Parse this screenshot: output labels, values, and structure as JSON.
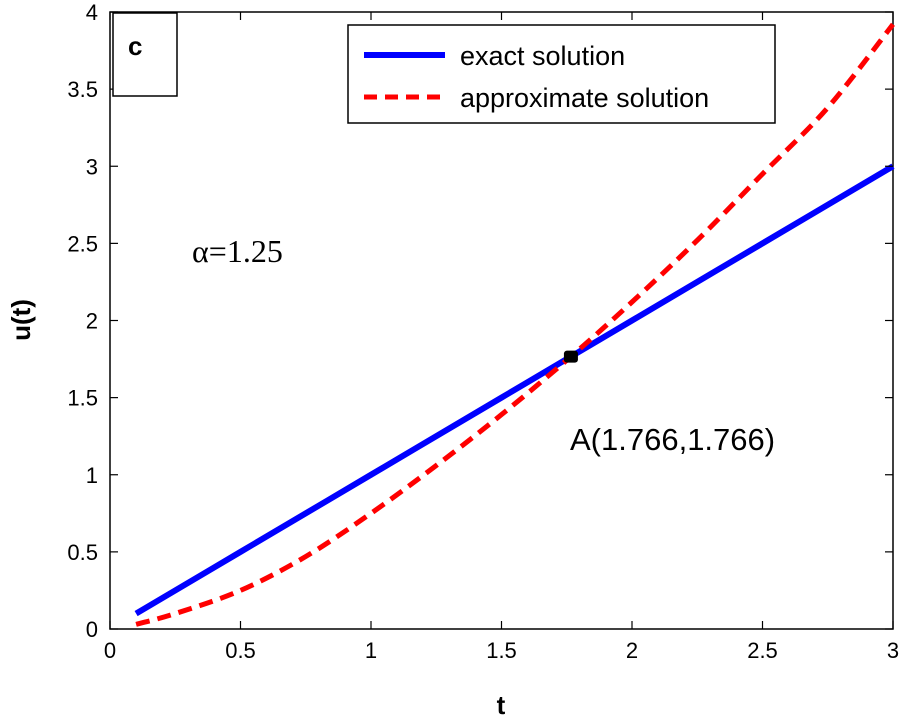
{
  "chart_data": {
    "type": "line",
    "title": "",
    "xlabel": "t",
    "ylabel": "u(t)",
    "xlim": [
      0,
      3
    ],
    "ylim": [
      0,
      4
    ],
    "xticks": [
      0,
      0.5,
      1,
      1.5,
      2,
      2.5,
      3
    ],
    "xtick_labels": [
      "0",
      "0.5",
      "1",
      "1.5",
      "2",
      "2.5",
      "3"
    ],
    "yticks": [
      0,
      0.5,
      1,
      1.5,
      2,
      2.5,
      3,
      3.5,
      4
    ],
    "ytick_labels": [
      "0",
      "0.5",
      "1",
      "1.5",
      "2",
      "2.5",
      "3",
      "3.5",
      "4"
    ],
    "grid": false,
    "legend_position": "top-right",
    "series": [
      {
        "name": "exact solution",
        "color": "#0000ff",
        "style": "solid",
        "x": [
          0.1,
          0.5,
          1.0,
          1.5,
          1.766,
          2.0,
          2.5,
          3.0
        ],
        "y": [
          0.1,
          0.5,
          1.0,
          1.5,
          1.766,
          2.0,
          2.5,
          3.0
        ]
      },
      {
        "name": "approximate solution",
        "color": "#ff0000",
        "style": "dashed",
        "x": [
          0.1,
          0.25,
          0.5,
          0.75,
          1.0,
          1.25,
          1.5,
          1.766,
          2.0,
          2.25,
          2.5,
          2.75,
          3.0
        ],
        "y": [
          0.03,
          0.1,
          0.25,
          0.47,
          0.75,
          1.06,
          1.39,
          1.766,
          2.12,
          2.52,
          2.95,
          3.38,
          3.92
        ]
      }
    ],
    "annotations": {
      "panel_label": "c",
      "alpha_label": "α=1.25",
      "point_label": "A(1.766,1.766)",
      "point": {
        "x": 1.766,
        "y": 1.766,
        "color": "#000000"
      }
    }
  }
}
